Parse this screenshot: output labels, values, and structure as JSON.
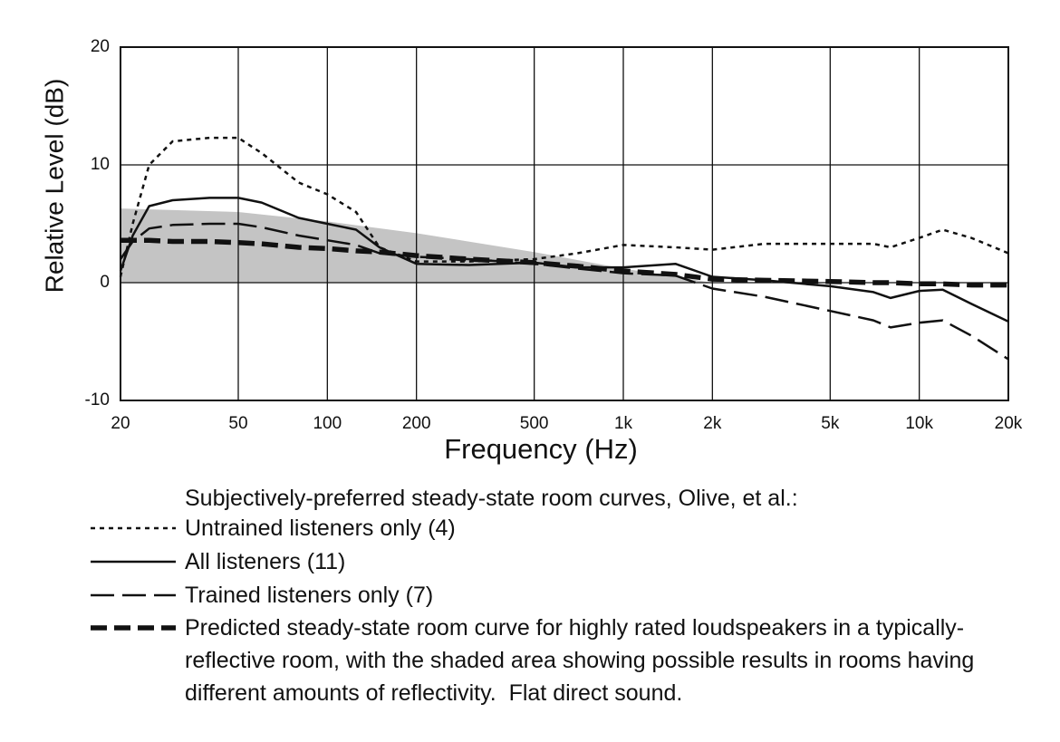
{
  "chart_data": {
    "type": "line",
    "x_label": "Frequency (Hz)",
    "y_label": "Relative Level (dB)",
    "log_x": true,
    "grid": true,
    "xlim": [
      20,
      20000
    ],
    "ylim": [
      -10,
      20
    ],
    "xticks": [
      20,
      50,
      100,
      200,
      500,
      {
        "value": 1000,
        "label": "1k"
      },
      {
        "value": 2000,
        "label": "2k"
      },
      {
        "value": 5000,
        "label": "5k"
      },
      {
        "value": 10000,
        "label": "10k"
      },
      {
        "value": 20000,
        "label": "20k"
      }
    ],
    "yticks": [
      -10,
      0,
      10,
      20
    ],
    "legend_title": "Subjectively-preferred steady-state room curves, Olive, et al.:",
    "x": [
      20,
      22,
      25,
      30,
      40,
      50,
      60,
      80,
      100,
      125,
      150,
      200,
      300,
      500,
      700,
      1000,
      1500,
      2000,
      3000,
      5000,
      7000,
      8000,
      10000,
      12000,
      15000,
      20000
    ],
    "band": {
      "color": "#c4c4c4",
      "x": [
        20,
        50,
        100,
        200,
        500,
        1000,
        2000
      ],
      "upper": [
        6.3,
        6,
        5.2,
        4.2,
        2.6,
        1.2,
        0
      ],
      "lower": [
        0,
        0,
        0,
        0,
        0,
        0,
        0
      ]
    },
    "series": [
      {
        "name": "Untrained listeners only (4)",
        "color": "#111111",
        "style": "dotted",
        "values": [
          0.5,
          5,
          10,
          12,
          12.3,
          12.3,
          11,
          8.5,
          7.5,
          6,
          3,
          1.8,
          1.8,
          2,
          2.5,
          3.2,
          3,
          2.8,
          3.3,
          3.3,
          3.3,
          3,
          3.8,
          4.5,
          3.8,
          2.5
        ]
      },
      {
        "name": "All listeners (11)",
        "color": "#111111",
        "style": "solid",
        "values": [
          1,
          4,
          6.5,
          7,
          7.2,
          7.2,
          6.8,
          5.5,
          5,
          4.5,
          3,
          1.6,
          1.5,
          1.7,
          1.3,
          1.3,
          1.6,
          0.5,
          0.2,
          -0.3,
          -0.8,
          -1.3,
          -0.7,
          -0.6,
          -1.8,
          -3.3
        ]
      },
      {
        "name": "Trained listeners only (7)",
        "color": "#111111",
        "style": "long-dash",
        "values": [
          2,
          3.5,
          4.6,
          4.9,
          5,
          5,
          4.7,
          4,
          3.6,
          3.2,
          2.5,
          2.2,
          2,
          1.6,
          1.2,
          0.8,
          0.6,
          -0.5,
          -1.2,
          -2.4,
          -3.2,
          -3.8,
          -3.4,
          -3.2,
          -4.5,
          -6.5
        ]
      },
      {
        "name": "Predicted steady-state room curve for highly rated loudspeakers in a typically-reflective room, with the shaded area showing possible results in rooms having different amounts of reflectivity.  Flat direct sound.",
        "color": "#111111",
        "style": "thick-dash",
        "values": [
          3.6,
          3.6,
          3.6,
          3.5,
          3.5,
          3.4,
          3.3,
          3,
          2.9,
          2.7,
          2.6,
          2.3,
          2,
          1.7,
          1.4,
          1,
          0.7,
          0.3,
          0.2,
          0.1,
          0,
          0,
          -0.1,
          -0.1,
          -0.2,
          -0.2
        ]
      }
    ]
  }
}
